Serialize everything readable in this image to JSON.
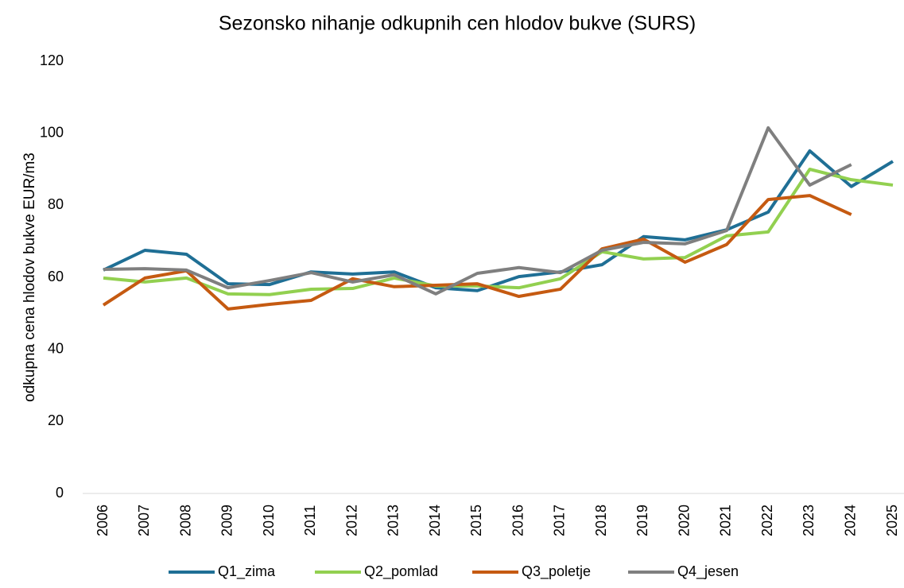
{
  "chart_data": {
    "type": "line",
    "title": "Sezonsko nihanje odkupnih cen hlodov bukve (SURS)",
    "y_label": "odkupna cena hlodov bukve EUR/m3",
    "categories": [
      "2006",
      "2007",
      "2008",
      "2009",
      "2010",
      "2011",
      "2012",
      "2013",
      "2014",
      "2015",
      "2016",
      "2017",
      "2018",
      "2019",
      "2020",
      "2021",
      "2022",
      "2023",
      "2024",
      "2025"
    ],
    "series": [
      {
        "name": "Q1_zima",
        "color": "#1f6f95",
        "values": [
          62.0,
          67.5,
          66.4,
          58.2,
          58.0,
          61.5,
          60.9,
          61.5,
          57.1,
          56.3,
          60.2,
          61.5,
          63.5,
          71.3,
          70.4,
          73.2,
          78.1,
          95.1,
          85.2,
          92.2
        ]
      },
      {
        "name": "Q2_pomlad",
        "color": "#92d050",
        "values": [
          59.8,
          58.7,
          59.8,
          55.4,
          55.2,
          56.7,
          56.9,
          59.8,
          57.6,
          57.6,
          57.1,
          59.6,
          67.1,
          65.1,
          65.5,
          71.5,
          72.6,
          90.0,
          87.1,
          85.6
        ]
      },
      {
        "name": "Q3_poletje",
        "color": "#c55a11",
        "values": [
          52.3,
          59.8,
          61.8,
          51.2,
          52.5,
          53.6,
          59.6,
          57.4,
          57.8,
          58.2,
          54.7,
          56.7,
          67.9,
          70.6,
          64.2,
          69.1,
          81.6,
          82.7,
          77.4,
          null
        ]
      },
      {
        "name": "Q4_jesen",
        "color": "#7f7f7f",
        "values": [
          62.2,
          62.4,
          62.0,
          57.1,
          59.1,
          61.3,
          58.7,
          60.7,
          55.4,
          61.1,
          62.7,
          61.3,
          67.5,
          69.7,
          69.3,
          73.0,
          101.5,
          85.6,
          91.3,
          null
        ]
      }
    ],
    "ylim": [
      0,
      120
    ],
    "yticks": [
      0,
      20,
      40,
      60,
      80,
      100,
      120
    ],
    "legend": "bottom"
  }
}
